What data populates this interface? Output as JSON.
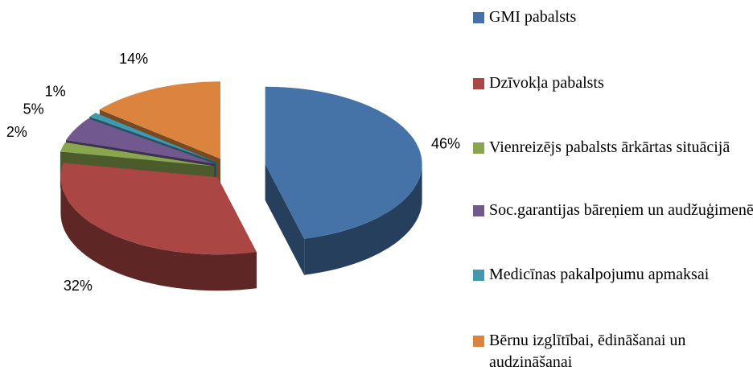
{
  "chart_data": {
    "type": "pie",
    "categories": [
      "GMI pabalsts",
      "Dzīvokļa pabalsts",
      "Vienreizējs pabalsts ārkārtas situācijā",
      "Soc.garantijas bāreņiem un audžuģimenēm",
      "Medicīnas pakalpojumu apmaksai",
      "Bērnu izglītībai, ēdināšanai un audzināšanai"
    ],
    "values": [
      46,
      32,
      2,
      5,
      1,
      14
    ],
    "value_labels": [
      "46%",
      "32%",
      "2%",
      "5%",
      "1%",
      "14%"
    ],
    "colors": [
      "#4572a7",
      "#aa4643",
      "#89a54e",
      "#71588f",
      "#4198af",
      "#db843d"
    ],
    "legend": "right"
  }
}
